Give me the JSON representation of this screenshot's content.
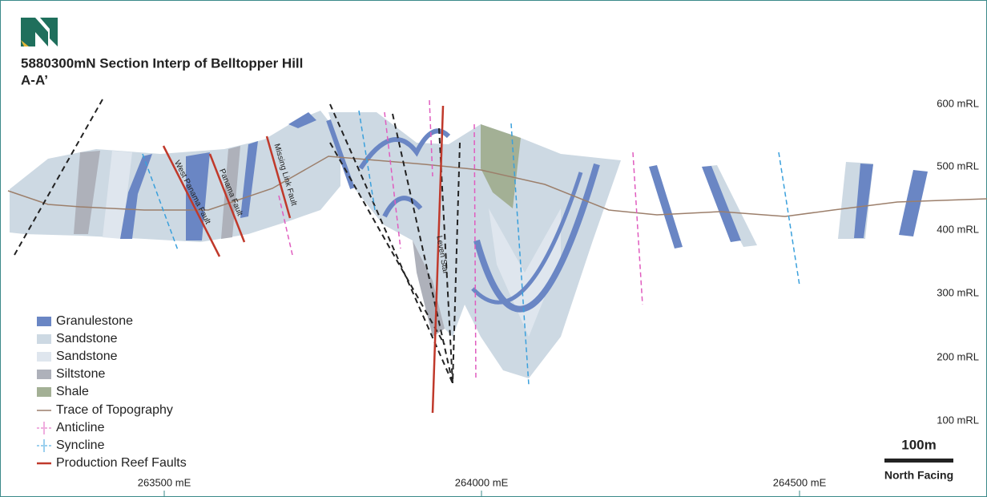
{
  "header": {
    "title": "5880300mN Section Interp of Belltopper Hill",
    "subtitle": "A-A’"
  },
  "y_axis": {
    "labels": [
      "600 mRL",
      "500 mRL",
      "400 mRL",
      "300 mRL",
      "200 mRL",
      "100 mRL"
    ]
  },
  "x_axis": {
    "labels": [
      "263500 mE",
      "264000 mE",
      "264500 mE"
    ]
  },
  "faults": {
    "labels": [
      "West Panama Fault",
      "Panama Fault",
      "Missing Link Fault",
      "Leven Star"
    ]
  },
  "legend": {
    "items": [
      "Granulestone",
      "Sandstone",
      "Sandstone",
      "Siltstone",
      "Shale",
      "Trace of Topography",
      "Anticline",
      "Syncline",
      "Production Reef Faults"
    ]
  },
  "scale_bar": {
    "label": "100m",
    "caption": "North Facing"
  }
}
